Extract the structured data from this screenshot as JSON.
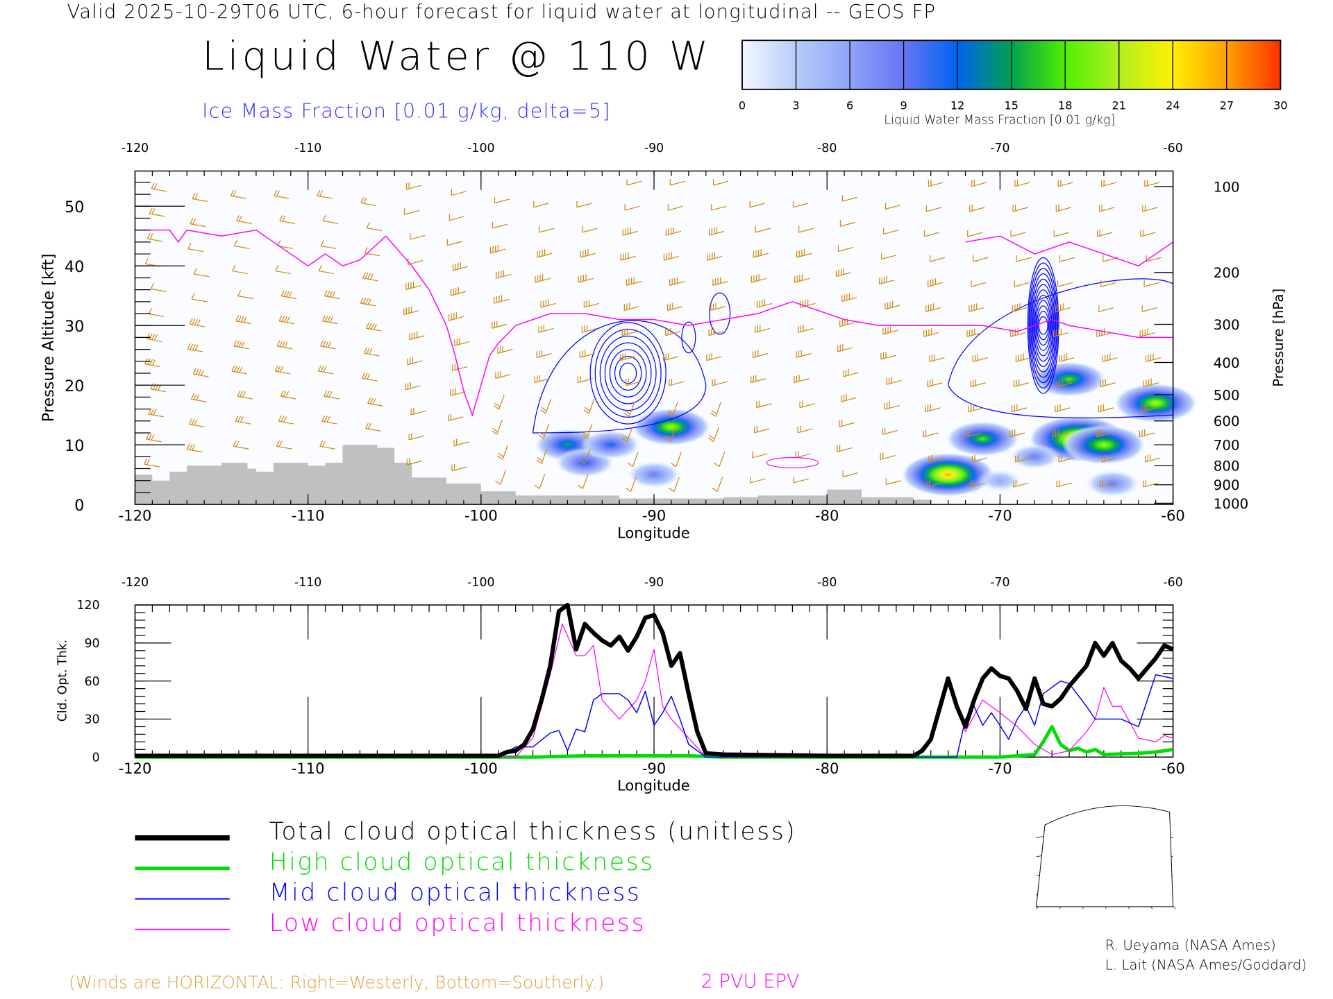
{
  "header": {
    "valid_line": "Valid 2025-10-29T06 UTC, 6-hour forecast for liquid water at longitudinal -- GEOS FP",
    "title": "Liquid Water @ 110 W",
    "ice_label": "Ice Mass Fraction [0.01 g/kg, delta=5]"
  },
  "colorbar": {
    "ticks": [
      "0",
      "3",
      "6",
      "9",
      "12",
      "15",
      "18",
      "21",
      "24",
      "27",
      "30"
    ],
    "label": "Liquid Water Mass Fraction [0.01 g/kg]",
    "colors": [
      "#f4f7ff",
      "#b6cdfa",
      "#8fa3f8",
      "#6676f4",
      "#0063f0",
      "#00a050",
      "#50f000",
      "#b0f020",
      "#fff000",
      "#ffa000",
      "#ff3000"
    ]
  },
  "chart_data": [
    {
      "type": "heatmap",
      "title": "Liquid Water @ 110 W",
      "xlabel": "Longitude",
      "ylabel": "Pressure Altitude [kft]",
      "ylabel_right": "Pressure [hPa]",
      "xlim": [
        -120,
        -60
      ],
      "ylim": [
        0,
        55
      ],
      "x_ticks": [
        "-120",
        "-110",
        "-100",
        "-90",
        "-80",
        "-70",
        "-60"
      ],
      "x_ticks_top": [
        "-120",
        "-110",
        "-100",
        "-90",
        "-80",
        "-70",
        "-60"
      ],
      "y_ticks": [
        "0",
        "10",
        "20",
        "30",
        "40",
        "50"
      ],
      "p_ticks": [
        "100",
        "200",
        "300",
        "400",
        "500",
        "600",
        "700",
        "800",
        "900",
        "1000"
      ],
      "p_tick_alt_kft": [
        53.3,
        38.9,
        30.2,
        23.8,
        18.4,
        14.0,
        10.0,
        6.5,
        3.3,
        0.2
      ],
      "terrain_kft": [
        [
          -120,
          5
        ],
        [
          -119,
          4
        ],
        [
          -118,
          5.5
        ],
        [
          -117,
          6.5
        ],
        [
          -116,
          6.5
        ],
        [
          -115,
          7
        ],
        [
          -113.5,
          6
        ],
        [
          -113,
          5.5
        ],
        [
          -112,
          7
        ],
        [
          -110,
          6.5
        ],
        [
          -109,
          7
        ],
        [
          -108,
          10
        ],
        [
          -106,
          9.5
        ],
        [
          -105,
          7
        ],
        [
          -104,
          4.5
        ],
        [
          -102,
          3.5
        ],
        [
          -100,
          2.2
        ],
        [
          -98,
          1.5
        ],
        [
          -94,
          1.5
        ],
        [
          -92,
          1
        ],
        [
          -86,
          1.2
        ],
        [
          -84,
          1.5
        ],
        [
          -80,
          2.5
        ],
        [
          -78,
          1.2
        ],
        [
          -75,
          0.8
        ]
      ],
      "epv_2pvu_kft": [
        [
          -120,
          46
        ],
        [
          -118,
          46
        ],
        [
          -117.5,
          44
        ],
        [
          -117,
          46
        ],
        [
          -115,
          45
        ],
        [
          -113,
          46
        ],
        [
          -111,
          42
        ],
        [
          -110,
          40
        ],
        [
          -109,
          42
        ],
        [
          -108,
          40
        ],
        [
          -107,
          41
        ],
        [
          -105.5,
          45
        ],
        [
          -104,
          40
        ],
        [
          -103,
          36
        ],
        [
          -102,
          30
        ],
        [
          -101.5,
          25
        ],
        [
          -101,
          19
        ],
        [
          -100.5,
          15
        ],
        [
          -100,
          20
        ],
        [
          -99.5,
          25
        ],
        [
          -99,
          27
        ],
        [
          -98,
          30
        ],
        [
          -96,
          32
        ],
        [
          -94,
          32
        ],
        [
          -92,
          31
        ],
        [
          -90,
          31
        ],
        [
          -88,
          30
        ],
        [
          -86,
          31
        ],
        [
          -84,
          32
        ],
        [
          -82,
          34
        ],
        [
          -81,
          33
        ],
        [
          -79,
          31
        ],
        [
          -77,
          30
        ],
        [
          -75,
          30
        ],
        [
          -73,
          30
        ],
        [
          -71,
          30
        ],
        [
          -69,
          29
        ],
        [
          -68,
          30
        ],
        [
          -67,
          31
        ],
        [
          -66,
          30
        ],
        [
          -64,
          29
        ],
        [
          -62,
          28
        ],
        [
          -60,
          28
        ]
      ],
      "liquid_water_cells": [
        [
          -95,
          10,
          15
        ],
        [
          -94,
          7,
          12
        ],
        [
          -92.5,
          10,
          12
        ],
        [
          -89,
          13,
          20
        ],
        [
          -90,
          5,
          10
        ],
        [
          -73,
          5,
          26
        ],
        [
          -71,
          11,
          18
        ],
        [
          -65.5,
          11,
          28
        ],
        [
          -64,
          10,
          22
        ],
        [
          -61,
          17,
          22
        ],
        [
          -63.5,
          3.5,
          10
        ],
        [
          -66,
          21,
          18
        ],
        [
          -70,
          4,
          6
        ],
        [
          -68,
          8,
          8
        ]
      ],
      "ice_max_centers": [
        [
          -91.5,
          22,
          25
        ],
        [
          -67.5,
          30,
          45
        ]
      ],
      "wind_barbs": "horizontal winds: right=westerly, bottom=southerly"
    },
    {
      "type": "line",
      "xlabel": "Longitude",
      "ylabel": "Cld. Opt. Thk.",
      "xlim": [
        -120,
        -60
      ],
      "ylim": [
        0,
        120
      ],
      "x_ticks": [
        "-120",
        "-110",
        "-100",
        "-90",
        "-80",
        "-70",
        "-60"
      ],
      "x_ticks_top": [
        "-120",
        "-110",
        "-100",
        "-90",
        "-80",
        "-70",
        "-60"
      ],
      "y_ticks": [
        "0",
        "30",
        "60",
        "90",
        "120"
      ],
      "series": [
        {
          "name": "Total cloud optical thickness (unitless)",
          "color": "#000000",
          "points": [
            [
              -120,
              1
            ],
            [
              -99,
              1
            ],
            [
              -98.5,
              4
            ],
            [
              -98,
              5
            ],
            [
              -97.5,
              10
            ],
            [
              -97,
              22
            ],
            [
              -96.5,
              45
            ],
            [
              -96,
              72
            ],
            [
              -95.5,
              115
            ],
            [
              -95,
              120
            ],
            [
              -94.5,
              85
            ],
            [
              -94,
              105
            ],
            [
              -93.5,
              98
            ],
            [
              -93,
              92
            ],
            [
              -92.5,
              88
            ],
            [
              -92,
              95
            ],
            [
              -91.5,
              84
            ],
            [
              -91,
              95
            ],
            [
              -90.5,
              110
            ],
            [
              -90,
              112
            ],
            [
              -89.5,
              98
            ],
            [
              -89,
              72
            ],
            [
              -88.5,
              82
            ],
            [
              -88,
              50
            ],
            [
              -87.5,
              20
            ],
            [
              -87,
              3
            ],
            [
              -86,
              2
            ],
            [
              -80,
              1
            ],
            [
              -75,
              1
            ],
            [
              -74.5,
              5
            ],
            [
              -74,
              14
            ],
            [
              -73.5,
              38
            ],
            [
              -73,
              62
            ],
            [
              -72.5,
              40
            ],
            [
              -72,
              24
            ],
            [
              -71.5,
              45
            ],
            [
              -71,
              62
            ],
            [
              -70.5,
              70
            ],
            [
              -70,
              64
            ],
            [
              -69.5,
              62
            ],
            [
              -69,
              52
            ],
            [
              -68.5,
              38
            ],
            [
              -68,
              62
            ],
            [
              -67.5,
              42
            ],
            [
              -67,
              40
            ],
            [
              -66.5,
              46
            ],
            [
              -66,
              56
            ],
            [
              -65.5,
              64
            ],
            [
              -65,
              72
            ],
            [
              -64.5,
              90
            ],
            [
              -64,
              80
            ],
            [
              -63.5,
              90
            ],
            [
              -63,
              76
            ],
            [
              -62.5,
              70
            ],
            [
              -62,
              62
            ],
            [
              -61.5,
              70
            ],
            [
              -61,
              78
            ],
            [
              -60.5,
              88
            ],
            [
              -60,
              85
            ]
          ]
        },
        {
          "name": "High cloud optical thickness",
          "color": "#00dd00",
          "points": [
            [
              -120,
              0
            ],
            [
              -97,
              0
            ],
            [
              -94,
              1
            ],
            [
              -88,
              1
            ],
            [
              -86,
              0
            ],
            [
              -70,
              0
            ],
            [
              -68,
              2
            ],
            [
              -67.5,
              12
            ],
            [
              -67,
              24
            ],
            [
              -66.5,
              10
            ],
            [
              -66,
              5
            ],
            [
              -65.5,
              7
            ],
            [
              -65,
              4
            ],
            [
              -64.5,
              6
            ],
            [
              -64,
              2
            ],
            [
              -62,
              3
            ],
            [
              -61,
              4
            ],
            [
              -60,
              6
            ]
          ]
        },
        {
          "name": "Mid cloud optical thickness",
          "color": "#0000ff",
          "points": [
            [
              -120,
              0
            ],
            [
              -99,
              0
            ],
            [
              -98,
              8
            ],
            [
              -97,
              8
            ],
            [
              -96,
              19
            ],
            [
              -95.5,
              21
            ],
            [
              -95,
              5
            ],
            [
              -94.5,
              22
            ],
            [
              -94,
              20
            ],
            [
              -93.5,
              45
            ],
            [
              -93,
              50
            ],
            [
              -92,
              50
            ],
            [
              -91.5,
              45
            ],
            [
              -91,
              35
            ],
            [
              -90.5,
              52
            ],
            [
              -90,
              25
            ],
            [
              -89.5,
              35
            ],
            [
              -89,
              48
            ],
            [
              -88.5,
              30
            ],
            [
              -88,
              10
            ],
            [
              -87,
              0
            ],
            [
              -72.5,
              0
            ],
            [
              -72,
              30
            ],
            [
              -71.5,
              40
            ],
            [
              -71,
              25
            ],
            [
              -70.5,
              35
            ],
            [
              -70,
              25
            ],
            [
              -69.5,
              14
            ],
            [
              -69,
              30
            ],
            [
              -68.5,
              40
            ],
            [
              -68,
              25
            ],
            [
              -67.5,
              50
            ],
            [
              -66.5,
              60
            ],
            [
              -66,
              58
            ],
            [
              -65,
              40
            ],
            [
              -64.5,
              30
            ],
            [
              -63,
              30
            ],
            [
              -62,
              24
            ],
            [
              -61,
              65
            ],
            [
              -60,
              62
            ]
          ]
        },
        {
          "name": "Low cloud optical thickness",
          "color": "#ff00ff",
          "points": [
            [
              -120,
              0
            ],
            [
              -98,
              0
            ],
            [
              -97,
              15
            ],
            [
              -96,
              65
            ],
            [
              -95.3,
              105
            ],
            [
              -94.5,
              80
            ],
            [
              -94,
              80
            ],
            [
              -93.5,
              88
            ],
            [
              -93,
              45
            ],
            [
              -92,
              30
            ],
            [
              -91,
              45
            ],
            [
              -90.5,
              60
            ],
            [
              -90,
              85
            ],
            [
              -89.5,
              40
            ],
            [
              -89,
              30
            ],
            [
              -88,
              15
            ],
            [
              -87,
              0
            ],
            [
              -75,
              0
            ],
            [
              -74,
              15
            ],
            [
              -73,
              62
            ],
            [
              -72.5,
              40
            ],
            [
              -72,
              20
            ],
            [
              -71,
              45
            ],
            [
              -70,
              35
            ],
            [
              -69,
              24
            ],
            [
              -68,
              10
            ],
            [
              -67,
              2
            ],
            [
              -66,
              5
            ],
            [
              -65,
              20
            ],
            [
              -64.5,
              30
            ],
            [
              -64,
              55
            ],
            [
              -63.5,
              40
            ],
            [
              -63,
              40
            ],
            [
              -62,
              15
            ],
            [
              -61,
              12
            ],
            [
              -60.5,
              17
            ],
            [
              -60,
              15
            ]
          ]
        }
      ]
    }
  ],
  "legend": {
    "items": [
      {
        "label": "Total cloud optical thickness (unitless)",
        "color": "#000000"
      },
      {
        "label": "High cloud optical thickness",
        "color": "#00dd00"
      },
      {
        "label": "Mid cloud optical thickness",
        "color": "#0000ff"
      },
      {
        "label": "Low cloud optical thickness",
        "color": "#ff00ff"
      }
    ]
  },
  "footer": {
    "winds_note": "(Winds are HORIZONTAL: Right=Westerly, Bottom=Southerly.)",
    "epv_note": "2 PVU EPV",
    "credit1": "R. Ueyama (NASA Ames)",
    "credit2": "L. Lait (NASA Ames/Goddard)"
  },
  "colors": {
    "barb": "#d08a10",
    "epv": "#ff00ff",
    "ice": "#0000ff",
    "terrain": "#c0c0c0"
  }
}
